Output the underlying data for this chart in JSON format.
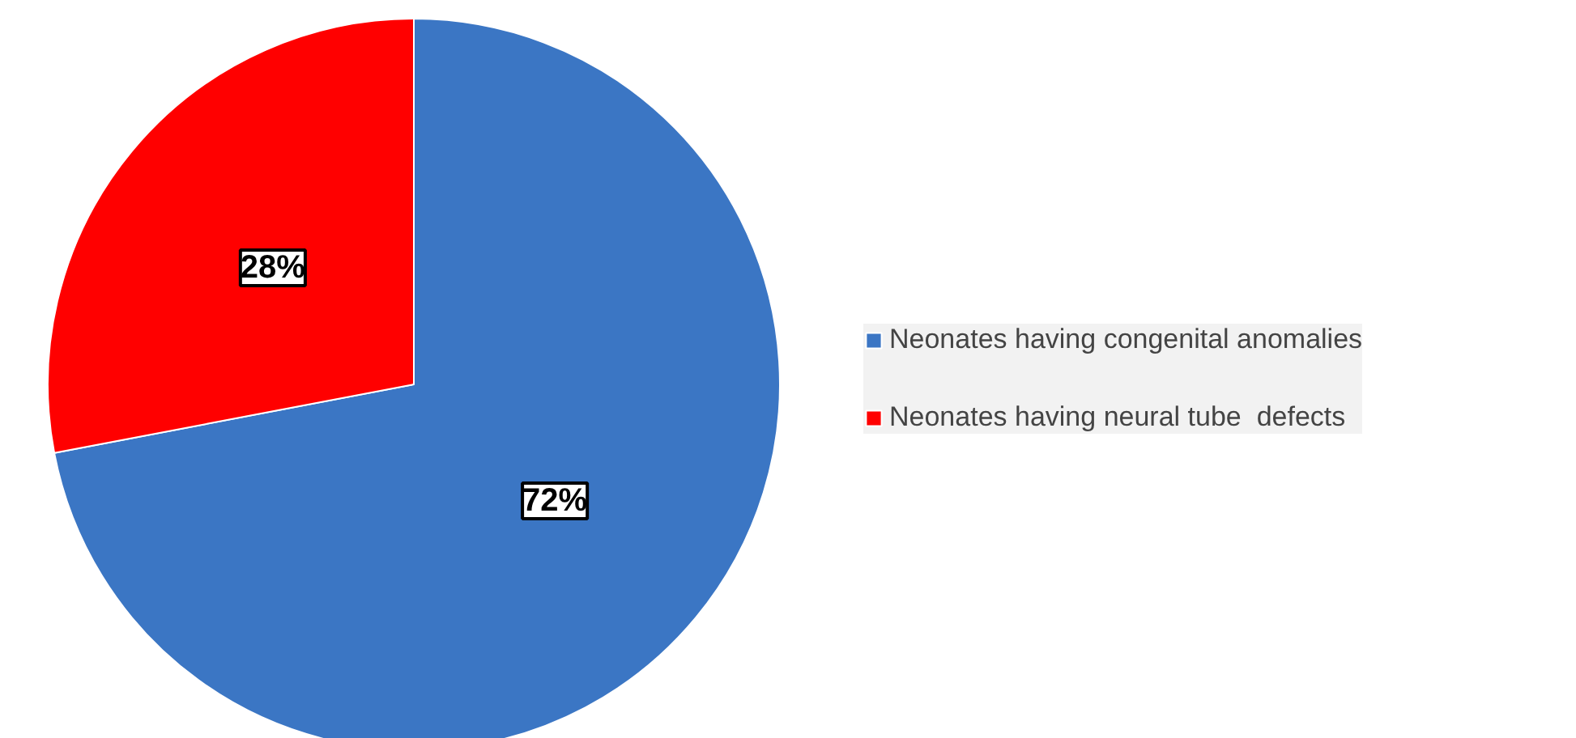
{
  "chart_data": {
    "type": "pie",
    "categories": [
      "Neonates having congenital anomalies",
      "Neonates having neural tube  defects"
    ],
    "values": [
      72,
      28
    ],
    "colors": [
      "#3b76c4",
      "#ff0000"
    ],
    "value_labels": [
      "72%",
      "28%"
    ],
    "legend": "right"
  }
}
